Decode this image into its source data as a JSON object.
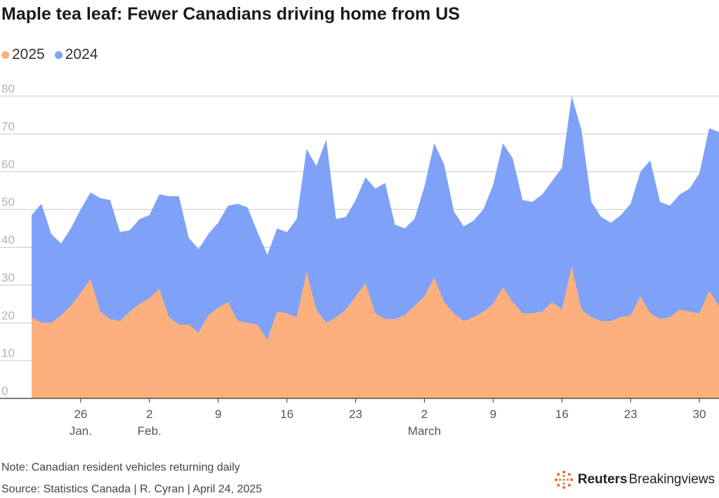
{
  "title": "Maple tea leaf: Fewer Canadians driving home from US",
  "legend": [
    {
      "label": "2025",
      "color": "#fbb07e"
    },
    {
      "label": "2024",
      "color": "#7fa2f8"
    }
  ],
  "note": "Note: Canadian resident vehicles returning daily",
  "source": "Source: Statistics Canada | R. Cyran | April 24, 2025",
  "brand": {
    "bold": "Reuters",
    "light": "Breakingviews",
    "icon": "reuters-dot-logo-icon"
  },
  "chart_data": {
    "type": "area",
    "ylim": [
      0,
      80
    ],
    "yticks": [
      0,
      10,
      20,
      30,
      40,
      50,
      60,
      70,
      80
    ],
    "grid": true,
    "x_start": 21,
    "x_end": 90,
    "xticks": [
      {
        "x": 26,
        "label": "26",
        "sub": "Jan."
      },
      {
        "x": 33,
        "label": "2",
        "sub": "Feb."
      },
      {
        "x": 40,
        "label": "9",
        "sub": ""
      },
      {
        "x": 47,
        "label": "16",
        "sub": ""
      },
      {
        "x": 54,
        "label": "23",
        "sub": ""
      },
      {
        "x": 61,
        "label": "2",
        "sub": "March"
      },
      {
        "x": 68,
        "label": "9",
        "sub": ""
      },
      {
        "x": 75,
        "label": "16",
        "sub": ""
      },
      {
        "x": 82,
        "label": "23",
        "sub": ""
      },
      {
        "x": 89,
        "label": "30",
        "sub": ""
      }
    ],
    "series": [
      {
        "name": "2024",
        "color": "#7fa2f8",
        "values": [
          48.5,
          51.5,
          43.5,
          41,
          45,
          50,
          54.5,
          53,
          52.5,
          44,
          44.5,
          47.5,
          48.5,
          54,
          53.5,
          53.5,
          42.5,
          39.5,
          43.5,
          46.5,
          51,
          51.5,
          50.5,
          44,
          38,
          45,
          44,
          47.5,
          66,
          61.5,
          68.5,
          47.5,
          48,
          52.5,
          58.5,
          55.5,
          57,
          46,
          45,
          47.5,
          56,
          67.5,
          62,
          49.5,
          45.5,
          47,
          50,
          56.5,
          67.5,
          63.5,
          52.5,
          52,
          54,
          57.5,
          61,
          80,
          71,
          52,
          48,
          46.5,
          48.5,
          51.5,
          60,
          63,
          52,
          51,
          54,
          55.5,
          59.5,
          71.5,
          70.5
        ]
      },
      {
        "name": "2025",
        "color": "#fbb07e",
        "values": [
          21.5,
          20,
          20,
          22,
          24.5,
          28,
          31.5,
          23,
          21,
          20.5,
          23,
          25,
          26.5,
          29,
          21.5,
          19.5,
          19.5,
          17.5,
          22,
          24,
          25.5,
          20.5,
          20,
          19.5,
          15.5,
          23,
          22.5,
          21.5,
          33.5,
          23.5,
          20,
          21.5,
          23.5,
          27,
          30.5,
          22.5,
          21,
          21,
          22,
          24.5,
          27,
          32,
          25.5,
          22.5,
          20.5,
          21.5,
          23,
          25,
          29.5,
          25.5,
          22.5,
          22.5,
          23,
          25.5,
          23.5,
          35,
          23.5,
          21.5,
          20.5,
          20.5,
          21.5,
          22,
          27,
          22.5,
          21,
          21.5,
          23.5,
          23,
          22.5,
          28.5,
          24.5
        ]
      }
    ]
  }
}
